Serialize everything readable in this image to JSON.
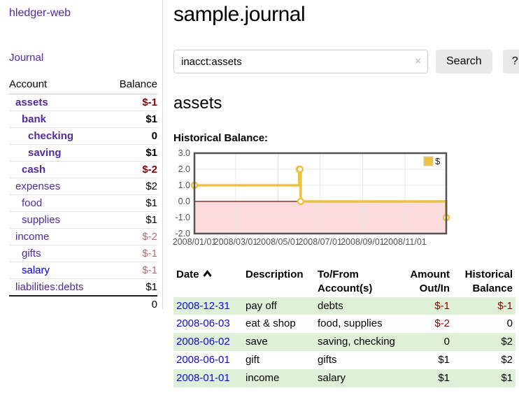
{
  "app": {
    "title": "hledger-web",
    "nav_journal": "Journal"
  },
  "sidebar": {
    "headers": [
      "Account",
      "Balance"
    ],
    "accounts": [
      {
        "name": "assets",
        "depth": 1,
        "balance": "$-1",
        "emph": true
      },
      {
        "name": "bank",
        "depth": 2,
        "balance": "$1",
        "emph": true
      },
      {
        "name": "checking",
        "depth": 3,
        "balance": "0",
        "emph": true
      },
      {
        "name": "saving",
        "depth": 3,
        "balance": "$1",
        "emph": true
      },
      {
        "name": "cash",
        "depth": 2,
        "balance": "$-2",
        "emph": true
      },
      {
        "name": "expenses",
        "depth": 1,
        "balance": "$2"
      },
      {
        "name": "food",
        "depth": 2,
        "balance": "$1"
      },
      {
        "name": "supplies",
        "depth": 2,
        "balance": "$1"
      },
      {
        "name": "income",
        "depth": 1,
        "balance": "$-2"
      },
      {
        "name": "gifts",
        "depth": 2,
        "balance": "$-1"
      },
      {
        "name": "salary",
        "depth": 2,
        "balance": "$-1",
        "unvisited": true
      },
      {
        "name": "liabilities:debts",
        "depth": 1,
        "balance": "$1"
      }
    ],
    "total": "0"
  },
  "main": {
    "title": "sample.journal",
    "search": {
      "value": "inacct:assets",
      "clear_icon": "×",
      "button": "Search",
      "help_button": "?"
    },
    "account_heading": "assets",
    "chart_label": "Historical Balance:",
    "register": {
      "headers": [
        "Date",
        "Description",
        "To/From Account(s)",
        "Amount Out/In",
        "Historical Balance"
      ],
      "rows": [
        {
          "date": "2008-12-31",
          "description": "pay off",
          "accounts": "debts",
          "amount": "$-1",
          "balance": "$-1",
          "stripe": true
        },
        {
          "date": "2008-06-03",
          "description": "eat & shop",
          "accounts": "food, supplies",
          "amount": "$-2",
          "balance": "0",
          "stripe": false
        },
        {
          "date": "2008-06-02",
          "description": "save",
          "accounts": "saving, checking",
          "amount": "0",
          "balance": "$2",
          "stripe": true
        },
        {
          "date": "2008-06-01",
          "description": "gift",
          "accounts": "gifts",
          "amount": "$1",
          "balance": "$2",
          "stripe": false
        },
        {
          "date": "2008-01-01",
          "description": "income",
          "accounts": "salary",
          "amount": "$1",
          "balance": "$1",
          "stripe": true
        }
      ]
    }
  },
  "chart_data": {
    "type": "line",
    "step": true,
    "title": "Historical Balance",
    "legend_label": "$",
    "legend_position": "top-right",
    "grid": true,
    "ylim": [
      -2,
      3
    ],
    "y_ticks": [
      "3.0",
      "2.0",
      "1.0",
      "0.0",
      "-1.0",
      "-2.0"
    ],
    "y_tick_values": [
      3,
      2,
      1,
      0,
      -1,
      -2
    ],
    "x_ticks": [
      {
        "label": "2008/01/01",
        "f": 0.0
      },
      {
        "label": "2008/03/01",
        "f": 0.164
      },
      {
        "label": "2008/05/01",
        "f": 0.332
      },
      {
        "label": "2008/07/01",
        "f": 0.499
      },
      {
        "label": "2008/09/01",
        "f": 0.668
      },
      {
        "label": "2008/11/01",
        "f": 0.836
      }
    ],
    "series": [
      {
        "name": "$",
        "points": [
          {
            "x": "2008-01-01",
            "f": 0.0,
            "y": 1
          },
          {
            "x": "2008-06-01",
            "f": 0.416,
            "y": 2
          },
          {
            "x": "2008-06-02",
            "f": 0.419,
            "y": 2
          },
          {
            "x": "2008-06-03",
            "f": 0.422,
            "y": 0
          },
          {
            "x": "2008-12-31",
            "f": 1.0,
            "y": -1
          }
        ]
      }
    ],
    "colors": {
      "line": "#edc240",
      "marker_fill": "#ffffff",
      "negative_region": "#fcdcdc",
      "zero_line": "#8b0000",
      "grid": "#e8e8e8",
      "border": "#545454",
      "tick_text": "#545454"
    }
  },
  "colors": {
    "link_purple": "#512b9e",
    "link_blue": "#0000e0",
    "negative_strong": "#8b0000",
    "negative_dim": "#c06c6c",
    "row_stripe_green": "#dff0d8",
    "button_bg": "#e9e9e9"
  }
}
